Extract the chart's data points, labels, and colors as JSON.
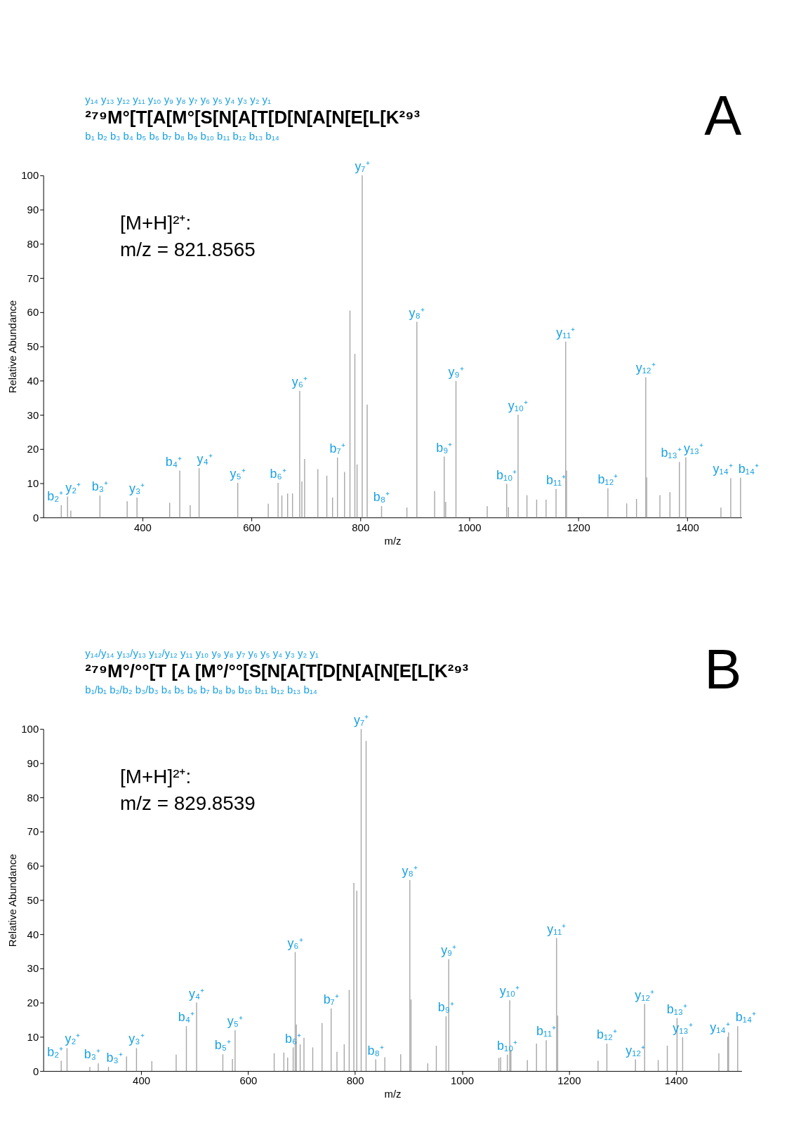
{
  "chart_data": [
    {
      "type": "bar",
      "title": "A",
      "xlabel": "m/z",
      "ylabel": "Relative Abundance",
      "color": "#a6a6a6",
      "x": [
        251,
        262.5,
        268.5,
        322,
        372,
        390,
        450,
        468.5,
        487.7,
        504,
        575,
        631,
        649,
        656,
        666.5,
        675.5,
        688.7,
        692.7,
        697.7,
        722,
        738.5,
        749,
        758,
        771,
        781,
        790,
        794,
        803.5,
        812.6,
        839,
        885.5,
        903.8,
        936.4,
        954,
        956.7,
        975.6,
        1033,
        1068.7,
        1072,
        1089.6,
        1105.9,
        1123.7,
        1141,
        1159.3,
        1177,
        1178.6,
        1254.5,
        1289,
        1307,
        1324,
        1325.7,
        1350,
        1368.4,
        1385.7,
        1397.5,
        1462,
        1480,
        1498
      ],
      "values": [
        3.6,
        6.1,
        2,
        6.4,
        4.7,
        5.8,
        4.3,
        13.7,
        3.6,
        14.4,
        10.1,
        4,
        10.1,
        6.4,
        7,
        7,
        37,
        10.5,
        17.1,
        14.1,
        12.2,
        5.8,
        17.5,
        13.3,
        60.5,
        47.8,
        15.5,
        100,
        33,
        3.3,
        2.9,
        57.2,
        7.7,
        17.8,
        4.5,
        39.9,
        3.3,
        9.8,
        3,
        30,
        6.5,
        5.2,
        5.2,
        8.3,
        51.4,
        13.7,
        8.5,
        4.1,
        5.4,
        41,
        11.7,
        6.5,
        7.4,
        16.2,
        17.6,
        2.9,
        11.5,
        11.6
      ],
      "xlim": [
        218,
        1500
      ],
      "xticks": [
        400,
        600,
        800,
        1000,
        1200,
        1400
      ],
      "ylim": [
        0,
        100
      ],
      "yticks": [
        0,
        10,
        20,
        30,
        40,
        50,
        60,
        70,
        80,
        90,
        100
      ],
      "grid": false,
      "annotations": [
        "y₁₄ y₁₃ y₁₂ y₁₁ y₁₀ y₉ y₈ y₇ y₆ y₅ y₄ y₃ y₂ y₁",
        "²⁷⁹M°[T[A[M°[S[N[A[T[D[N[A[N[E[L[K²⁹³",
        "b₁ b₂ b₃ b₄ b₅ b₆ b₇ b₈ b₉ b₁₀ b₁₁ b₁₂ b₁₃ b₁₄",
        "[M+H]²⁺:",
        "m/z = 821.8565",
        {
          "text": "b₂⁺",
          "x": 251,
          "y": 3.6
        },
        {
          "text": "y₂⁺",
          "x": 262.5,
          "y": 6.1
        },
        {
          "text": "b₃⁺",
          "x": 322,
          "y": 6.4
        },
        {
          "text": "y₃⁺",
          "x": 390,
          "y": 5.8
        },
        {
          "text": "b₄⁺",
          "x": 468.5,
          "y": 13.7
        },
        {
          "text": "y₄⁺",
          "x": 504,
          "y": 14.4
        },
        {
          "text": "y₅⁺",
          "x": 575,
          "y": 10.1
        },
        {
          "text": "b₆⁺",
          "x": 649,
          "y": 10.1
        },
        {
          "text": "y₆⁺",
          "x": 688.7,
          "y": 37
        },
        {
          "text": "b₇⁺",
          "x": 758,
          "y": 17.5
        },
        {
          "text": "y₇⁺",
          "x": 803.5,
          "y": 100
        },
        {
          "text": "b₈⁺",
          "x": 839,
          "y": 3.3
        },
        {
          "text": "y₈⁺",
          "x": 903.8,
          "y": 57.2
        },
        {
          "text": "b₉⁺",
          "x": 954,
          "y": 17.8
        },
        {
          "text": "y₉⁺",
          "x": 975.6,
          "y": 39.9
        },
        {
          "text": "b₁₀⁺",
          "x": 1068.7,
          "y": 9.8
        },
        {
          "text": "y₁₀⁺",
          "x": 1089.6,
          "y": 30
        },
        {
          "text": "b₁₁⁺",
          "x": 1159.3,
          "y": 8.3
        },
        {
          "text": "y₁₁⁺",
          "x": 1177,
          "y": 51.4
        },
        {
          "text": "b₁₂⁺",
          "x": 1254.5,
          "y": 8.5
        },
        {
          "text": "y₁₂⁺",
          "x": 1324,
          "y": 41
        },
        {
          "text": "b₁₃⁺",
          "x": 1385.7,
          "y": 16.2
        },
        {
          "text": "y₁₃⁺",
          "x": 1397.5,
          "y": 17.6
        },
        {
          "text": "y₁₄⁺",
          "x": 1480,
          "y": 11.5
        },
        {
          "text": "b₁₄⁺",
          "x": 1498,
          "y": 11.6
        }
      ]
    },
    {
      "type": "bar",
      "title": "B",
      "xlabel": "m/z",
      "ylabel": "Relative Abundance",
      "color": "#a6a6a6",
      "x": [
        250.5,
        261.4,
        304,
        319.8,
        338.9,
        372.7,
        391.3,
        420,
        465.5,
        484.6,
        503.7,
        552.8,
        570.8,
        575.7,
        648.8,
        666.9,
        674,
        684.3,
        688.1,
        690.3,
        697.4,
        704.5,
        720.9,
        738.3,
        755.3,
        766.2,
        779.8,
        789.1,
        797.8,
        803.3,
        811.5,
        820.7,
        838.7,
        855.7,
        885.4,
        902.5,
        904.7,
        936,
        952,
        970.2,
        975.2,
        1068.9,
        1072.2,
        1084.8,
        1089.3,
        1091.5,
        1122.3,
        1139.4,
        1157.6,
        1176.9,
        1179,
        1254.5,
        1271,
        1324.5,
        1341.6,
        1367,
        1384,
        1402.2,
        1412.7,
        1480.4,
        1497,
        1498.6,
        1515.6
      ],
      "values": [
        3,
        6.7,
        1.2,
        2.2,
        1.2,
        4.3,
        6.7,
        2.9,
        4.8,
        13.1,
        20,
        4.9,
        3.5,
        11.9,
        5.2,
        5.4,
        3.9,
        6.9,
        34.8,
        13.6,
        7.8,
        9.7,
        6.9,
        14,
        18.3,
        5.6,
        7.8,
        23.7,
        55,
        52.7,
        100,
        96.5,
        3.4,
        4,
        4.9,
        55.8,
        20.9,
        2.2,
        7.4,
        16,
        32.7,
        3.8,
        4,
        4.8,
        20.7,
        6.2,
        3.2,
        8,
        9,
        38.9,
        16.2,
        3,
        8,
        3.4,
        19.6,
        3.2,
        7.4,
        15.5,
        9.9,
        5.2,
        10,
        11.3,
        13.1
      ],
      "xlim": [
        217,
        1523
      ],
      "xticks": [
        400,
        600,
        800,
        1000,
        1200,
        1400
      ],
      "ylim": [
        0,
        100
      ],
      "yticks": [
        0,
        10,
        20,
        30,
        40,
        50,
        60,
        70,
        80,
        90,
        100
      ],
      "grid": false,
      "annotations": [
        "y₁₄/y₁₄ y₁₃/y₁₃ y₁₂/y₁₂ y₁₁ y₁₀ y₉ y₈ y₇ y₆ y₅ y₄ y₃ y₂ y₁",
        "²⁷⁹M°/°°[T [A [M°/°°[S[N[A[T[D[N[A[N[E[L[K²⁹³",
        "b₁/b₁ b₂/b₂ b₃/b₃ b₄ b₅ b₆ b₇ b₈ b₉ b₁₀ b₁₁ b₁₂ b₁₃ b₁₄",
        "[M+H]²⁺:",
        "m/z = 829.8539",
        {
          "text": "b₂⁺",
          "x": 250.5,
          "y": 3
        },
        {
          "text": "y₂⁺",
          "x": 261.4,
          "y": 6.7
        },
        {
          "text": "b₃⁺",
          "x": 319.8,
          "y": 2.2
        },
        {
          "text": "b₃⁺",
          "x": 338.9,
          "y": 1.2
        },
        {
          "text": "y₃⁺",
          "x": 391.3,
          "y": 6.7
        },
        {
          "text": "b₄⁺",
          "x": 484.6,
          "y": 13.1
        },
        {
          "text": "y₄⁺",
          "x": 503.7,
          "y": 20
        },
        {
          "text": "b₅⁺",
          "x": 552.8,
          "y": 4.9
        },
        {
          "text": "y₅⁺",
          "x": 575.7,
          "y": 11.9
        },
        {
          "text": "b₆⁺",
          "x": 684.3,
          "y": 6.9
        },
        {
          "text": "y₆⁺",
          "x": 688.1,
          "y": 34.8
        },
        {
          "text": "b₇⁺",
          "x": 755.3,
          "y": 18.3
        },
        {
          "text": "y₇⁺",
          "x": 811.5,
          "y": 100
        },
        {
          "text": "b₈⁺",
          "x": 838.7,
          "y": 3.4
        },
        {
          "text": "y₈⁺",
          "x": 902.5,
          "y": 55.8
        },
        {
          "text": "b₉⁺",
          "x": 970.2,
          "y": 16
        },
        {
          "text": "y₉⁺",
          "x": 975.2,
          "y": 32.7
        },
        {
          "text": "b₁₀⁺",
          "x": 1084.8,
          "y": 4.8
        },
        {
          "text": "y₁₀⁺",
          "x": 1089.3,
          "y": 20.7
        },
        {
          "text": "b₁₁⁺",
          "x": 1157.6,
          "y": 9
        },
        {
          "text": "y₁₁⁺",
          "x": 1176.9,
          "y": 38.9
        },
        {
          "text": "b₁₂⁺",
          "x": 1271,
          "y": 8
        },
        {
          "text": "y₁₂⁺",
          "x": 1324.5,
          "y": 3.4
        },
        {
          "text": "y₁₂⁺",
          "x": 1341.6,
          "y": 19.6
        },
        {
          "text": "b₁₃⁺",
          "x": 1402.2,
          "y": 15.5
        },
        {
          "text": "y₁₃⁺",
          "x": 1412.7,
          "y": 9.9
        },
        {
          "text": "y₁₄⁺",
          "x": 1497,
          "y": 10
        },
        {
          "text": "b₁₄⁺",
          "x": 1515.6,
          "y": 13.1
        }
      ]
    }
  ]
}
